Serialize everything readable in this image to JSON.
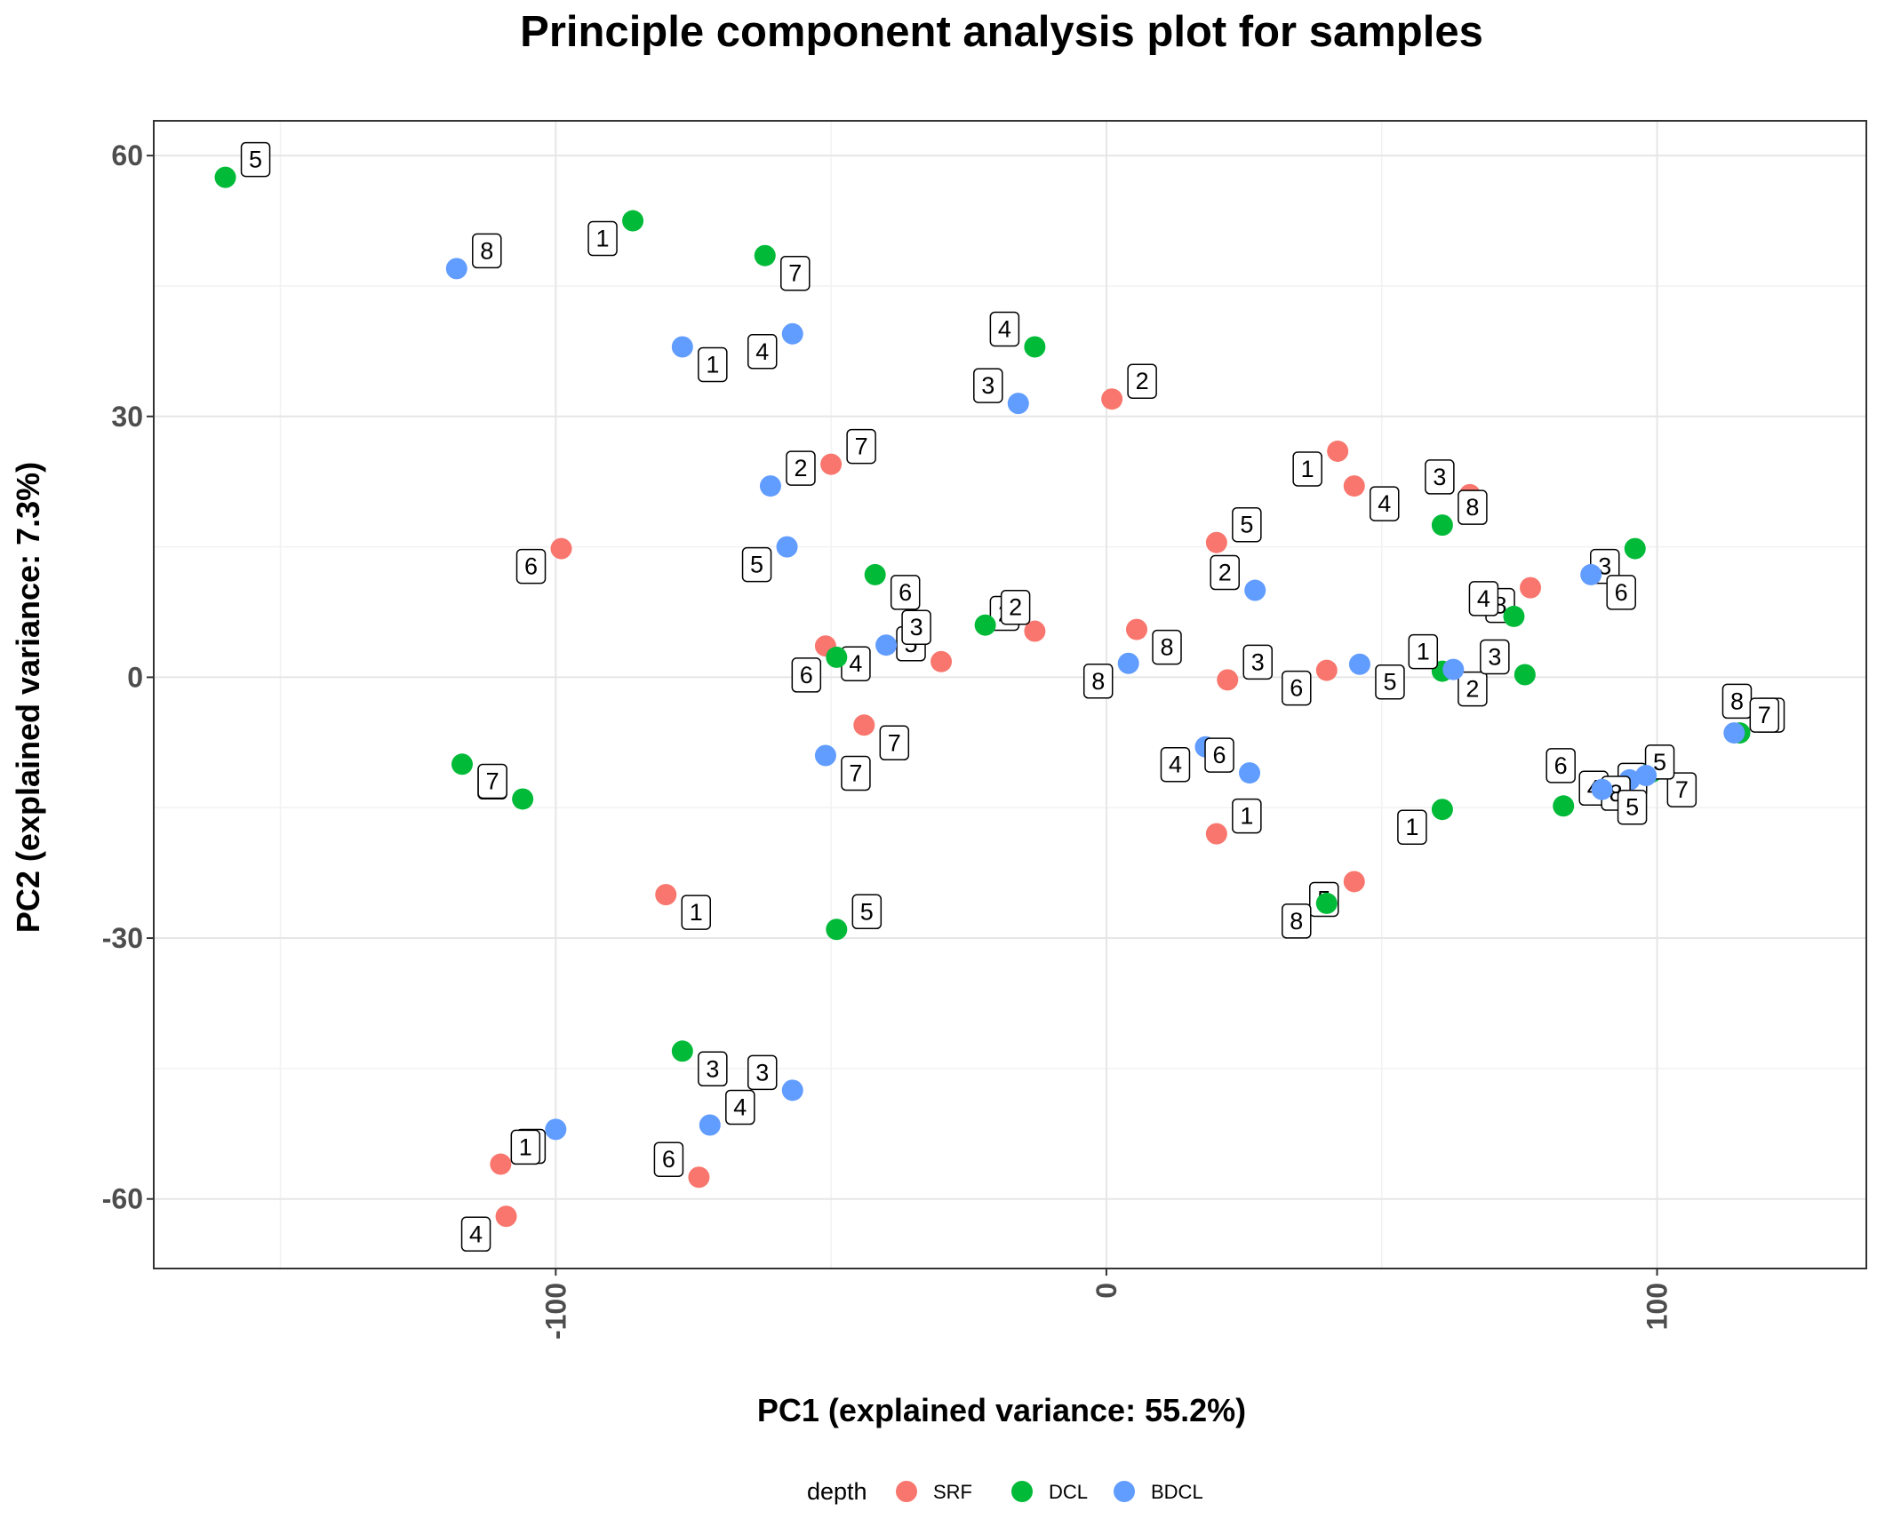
{
  "chart_data": {
    "type": "scatter",
    "title": "Principle component analysis plot for samples",
    "xlabel": "PC1 (explained variance: 55.2%)",
    "ylabel": "PC2 (explained variance: 7.3%)",
    "xlim": [
      -173,
      138
    ],
    "ylim": [
      -68,
      64
    ],
    "xticks": [
      -100,
      0,
      100
    ],
    "yticks": [
      -60,
      -30,
      0,
      30,
      60
    ],
    "grid": true,
    "legend": {
      "title": "depth",
      "position": "bottom"
    },
    "series": [
      {
        "name": "SRF",
        "color": "#F8766D",
        "points": [
          {
            "x": 1,
            "y": 32,
            "label": "2"
          },
          {
            "x": 42,
            "y": 26,
            "label": "1"
          },
          {
            "x": 45,
            "y": 22,
            "label": "4"
          },
          {
            "x": 66,
            "y": 21,
            "label": "3"
          },
          {
            "x": 20,
            "y": 15.5,
            "label": "5"
          },
          {
            "x": 77,
            "y": 10.3,
            "label": "8"
          },
          {
            "x": 5.5,
            "y": 5.5,
            "label": "8"
          },
          {
            "x": -13,
            "y": 5.3,
            "label": "2"
          },
          {
            "x": -50,
            "y": 24.5,
            "label": "7"
          },
          {
            "x": -99,
            "y": 14.8,
            "label": "6"
          },
          {
            "x": -51,
            "y": 3.6,
            "label": "4"
          },
          {
            "x": -30,
            "y": 1.8,
            "label": "5"
          },
          {
            "x": 22,
            "y": -0.3,
            "label": "3"
          },
          {
            "x": 40,
            "y": 0.8,
            "label": "6"
          },
          {
            "x": -44,
            "y": -5.5,
            "label": "7"
          },
          {
            "x": 120,
            "y": -4.8,
            "label": "8"
          },
          {
            "x": 20,
            "y": -18,
            "label": "1"
          },
          {
            "x": 45,
            "y": -23.5,
            "label": "5"
          },
          {
            "x": -80,
            "y": -25,
            "label": "1"
          },
          {
            "x": -74,
            "y": -57.5,
            "label": "6"
          },
          {
            "x": -110,
            "y": -56,
            "label": "3"
          },
          {
            "x": -109,
            "y": -62,
            "label": "4"
          }
        ]
      },
      {
        "name": "DCL",
        "color": "#00BA38",
        "points": [
          {
            "x": -160,
            "y": 57.5,
            "label": "5"
          },
          {
            "x": -86,
            "y": 52.5,
            "label": "1"
          },
          {
            "x": -62,
            "y": 48.5,
            "label": "7"
          },
          {
            "x": -13,
            "y": 38,
            "label": "4"
          },
          {
            "x": 61,
            "y": 17.5,
            "label": "8"
          },
          {
            "x": 96,
            "y": 14.8,
            "label": "3"
          },
          {
            "x": -42,
            "y": 11.8,
            "label": "6"
          },
          {
            "x": 74,
            "y": 7,
            "label": "4"
          },
          {
            "x": -22,
            "y": 6,
            "label": "2"
          },
          {
            "x": -49,
            "y": 2.3,
            "label": "6"
          },
          {
            "x": 61,
            "y": 0.7,
            "label": "2"
          },
          {
            "x": 76,
            "y": 0.3,
            "label": "3"
          },
          {
            "x": 115,
            "y": -6.4,
            "label": "8"
          },
          {
            "x": 101,
            "y": -9.8,
            "label": "5"
          },
          {
            "x": 99,
            "y": -10.9,
            "label": "7"
          },
          {
            "x": 88,
            "y": -12.2,
            "label": "6"
          },
          {
            "x": 83,
            "y": -14.8,
            "label": "4"
          },
          {
            "x": 61,
            "y": -15.2,
            "label": "1"
          },
          {
            "x": -117,
            "y": -10,
            "label": "1"
          },
          {
            "x": -106,
            "y": -14,
            "label": "7"
          },
          {
            "x": -49,
            "y": -29,
            "label": "5"
          },
          {
            "x": 40,
            "y": -26,
            "label": "8"
          },
          {
            "x": -77,
            "y": -43,
            "label": "3"
          }
        ]
      },
      {
        "name": "BDCL",
        "color": "#619CFF",
        "points": [
          {
            "x": -118,
            "y": 47,
            "label": "8"
          },
          {
            "x": -57,
            "y": 39.5,
            "label": "4"
          },
          {
            "x": -77,
            "y": 38,
            "label": "1"
          },
          {
            "x": -16,
            "y": 31.5,
            "label": "3"
          },
          {
            "x": -61,
            "y": 22,
            "label": "2"
          },
          {
            "x": -58,
            "y": 15,
            "label": "5"
          },
          {
            "x": 88,
            "y": 11.8,
            "label": "6"
          },
          {
            "x": 27,
            "y": 10,
            "label": "2"
          },
          {
            "x": -40,
            "y": 3.7,
            "label": "3"
          },
          {
            "x": 4,
            "y": 1.6,
            "label": "8"
          },
          {
            "x": 46,
            "y": 1.5,
            "label": "5"
          },
          {
            "x": 63,
            "y": 0.9,
            "label": "1"
          },
          {
            "x": 114,
            "y": -6.4,
            "label": "7"
          },
          {
            "x": 18,
            "y": -8,
            "label": "4"
          },
          {
            "x": -51,
            "y": -9,
            "label": "7"
          },
          {
            "x": 26,
            "y": -11,
            "label": "6"
          },
          {
            "x": 95,
            "y": -11.8,
            "label": "5"
          },
          {
            "x": 98,
            "y": -11.3,
            "label": "8"
          },
          {
            "x": 90,
            "y": -12.9,
            "label": "5"
          },
          {
            "x": -57,
            "y": -47.5,
            "label": "3"
          },
          {
            "x": -72,
            "y": -51.5,
            "label": "4"
          },
          {
            "x": -100,
            "y": -52,
            "label": "1"
          }
        ]
      }
    ]
  }
}
